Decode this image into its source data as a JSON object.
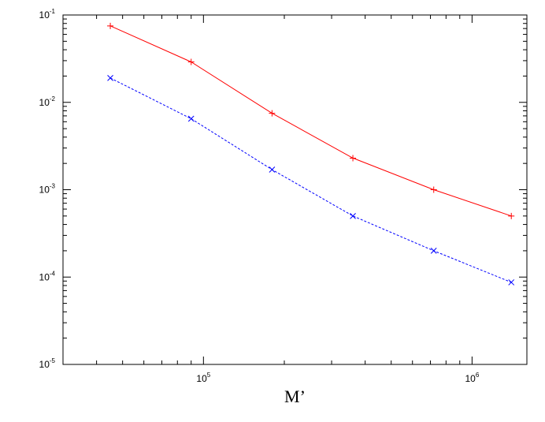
{
  "chart_data": {
    "type": "line",
    "title": "",
    "xlabel": "M’",
    "ylabel": "",
    "xscale": "log",
    "yscale": "log",
    "xlim": [
      30000,
      1600000
    ],
    "ylim": [
      1e-05,
      0.1
    ],
    "grid": false,
    "legend": "none",
    "x_ticks": [
      {
        "value": 100000,
        "base": "10",
        "exp": "5"
      },
      {
        "value": 1000000,
        "base": "10",
        "exp": "6"
      }
    ],
    "y_ticks": [
      {
        "value": 0.1,
        "base": "10",
        "exp": "-1"
      },
      {
        "value": 0.01,
        "base": "10",
        "exp": "-2"
      },
      {
        "value": 0.001,
        "base": "10",
        "exp": "-3"
      },
      {
        "value": 0.0001,
        "base": "10",
        "exp": "-4"
      },
      {
        "value": 1e-05,
        "base": "10",
        "exp": "-5"
      }
    ],
    "series": [
      {
        "color": "#ff0000",
        "marker": "plus",
        "line": "solid",
        "x": [
          45000,
          90000,
          180000,
          360000,
          720000,
          1400000
        ],
        "values": [
          0.075,
          0.029,
          0.0075,
          0.0023,
          0.001,
          0.0005
        ]
      },
      {
        "color": "#0000ff",
        "marker": "cross",
        "line": "dashed",
        "x": [
          45000,
          90000,
          180000,
          360000,
          720000,
          1400000
        ],
        "values": [
          0.019,
          0.0065,
          0.0017,
          0.0005,
          0.0002,
          8.7e-05
        ]
      }
    ]
  }
}
